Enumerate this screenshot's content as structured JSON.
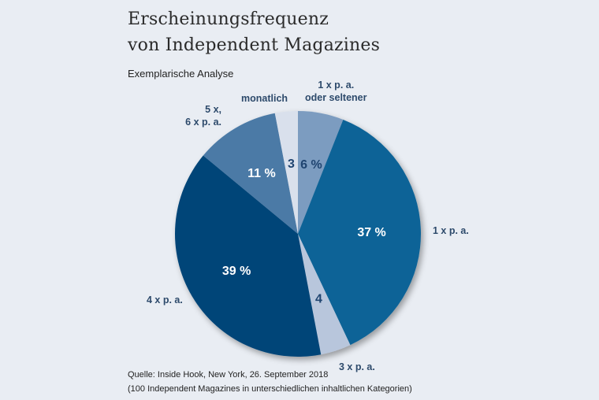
{
  "chart_data": {
    "type": "pie",
    "title": "Erscheinungsfrequenz von Independent Magazines",
    "title_lines": [
      "Erscheinungsfrequenz",
      "von Independent Magazines"
    ],
    "subtitle": "Exemplarische Analyse",
    "slices": [
      {
        "name": "1 x p. a. oder seltener",
        "value": 6,
        "data_label": "6 %",
        "color": "#7b9cc0",
        "label_color": "#1f4470"
      },
      {
        "name": "1 x p. a.",
        "value": 37,
        "data_label": "37 %",
        "color": "#0e6497",
        "label_color": "#ffffff"
      },
      {
        "name": "3 x p. a.",
        "value": 4,
        "data_label": "4",
        "color": "#b8c6dc",
        "label_color": "#1f4470"
      },
      {
        "name": "4 x p. a.",
        "value": 39,
        "data_label": "39 %",
        "color": "#024578",
        "label_color": "#ffffff"
      },
      {
        "name": "5 x, 6 x p. a.",
        "value": 11,
        "data_label": "11 %",
        "color": "#4b7aa6",
        "label_color": "#ffffff"
      },
      {
        "name": "monatlich",
        "value": 3,
        "data_label": "3",
        "color": "#d9e0ec",
        "label_color": "#1f4470"
      }
    ],
    "start_angle": "12 o'clock",
    "direction": "clockwise"
  },
  "category_labels": {
    "top_right": [
      "1 x p. a.",
      "oder seltener"
    ],
    "right": "1 x p. a.",
    "bottom": "3 x p. a.",
    "left": "4 x p. a.",
    "upper_left": [
      "5 x,",
      "6 x p. a."
    ],
    "top": "monatlich"
  },
  "source": {
    "line1": "Quelle: Inside Hook, New York, 26. September 2018",
    "line2": "(100 Independent Magazines in unterschiedlichen inhaltlichen Kategorien)"
  }
}
